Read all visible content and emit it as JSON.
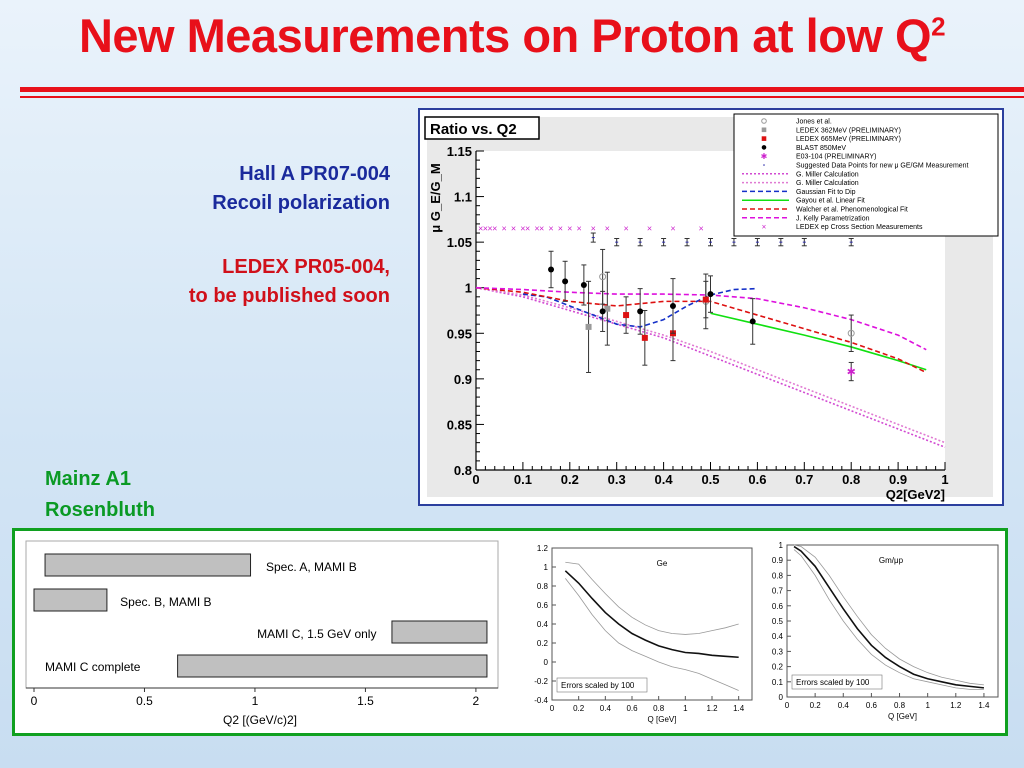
{
  "slide": {
    "title": "New Measurements on Proton at low Q",
    "title_sup": "2",
    "hallA_line1": "Hall A PR07-004",
    "hallA_line2": "Recoil polarization",
    "ledex_line1": "LEDEX PR05-004,",
    "ledex_line2": "to be published soon",
    "mainz_line1": "Mainz A1",
    "mainz_line2": "Rosenbluth"
  },
  "colors": {
    "title": "#e8101a",
    "hallA": "#1a2a9c",
    "mainz": "#0a9a24",
    "panel_border": "#2b3f9e",
    "lower_border": "#10a020"
  },
  "chart_data": [
    {
      "type": "scatter",
      "title": "Ratio vs. Q2",
      "ylabel": "μ G_E/G_M",
      "xlabel": "Q2[GeV2]",
      "xlim": [
        0,
        1
      ],
      "ylim": [
        0.8,
        1.15
      ],
      "xticks": [
        "0",
        "0.1",
        "0.2",
        "0.3",
        "0.4",
        "0.5",
        "0.6",
        "0.7",
        "0.8",
        "0.9",
        "1"
      ],
      "yticks": [
        "0.8",
        "0.85",
        "0.9",
        "0.95",
        "1",
        "1.05",
        "1.1",
        "1.15"
      ],
      "legend_position": "top-right",
      "series": [
        {
          "name": "Jones et al.",
          "marker": "open-circle",
          "color": "#9a9a9a",
          "points": [
            [
              0.27,
              1.012,
              0.03
            ],
            [
              0.49,
              0.985,
              0.03
            ],
            [
              0.8,
              0.95,
              0.02
            ]
          ]
        },
        {
          "name": "LEDEX 362MeV (PRELIMINARY)",
          "marker": "square",
          "color": "#9a9a9a",
          "points": [
            [
              0.24,
              0.957,
              0.05
            ],
            [
              0.28,
              0.977,
              0.04
            ]
          ]
        },
        {
          "name": "LEDEX 665MeV (PRELIMINARY)",
          "marker": "square",
          "color": "#dd1111",
          "points": [
            [
              0.32,
              0.97,
              0.02
            ],
            [
              0.36,
              0.945,
              0.03
            ],
            [
              0.42,
              0.95,
              0.03
            ],
            [
              0.49,
              0.987,
              0.02
            ]
          ]
        },
        {
          "name": "BLAST 850MeV",
          "marker": "filled-circle",
          "color": "#000000",
          "points": [
            [
              0.16,
              1.02,
              0.02
            ],
            [
              0.19,
              1.007,
              0.022
            ],
            [
              0.23,
              1.003,
              0.022
            ],
            [
              0.27,
              0.974,
              0.022
            ],
            [
              0.35,
              0.974,
              0.025
            ],
            [
              0.42,
              0.98,
              0.03
            ],
            [
              0.5,
              0.993,
              0.02
            ],
            [
              0.59,
              0.963,
              0.025
            ]
          ]
        },
        {
          "name": "E03-104 (PRELIMINARY)",
          "marker": "star",
          "color": "#cc22cc",
          "points": [
            [
              0.8,
              0.908,
              0.01
            ]
          ]
        },
        {
          "name": "Suggested Data Points for new μ GE/GM Measurement",
          "marker": "small-bar",
          "color": "#2a2aaa",
          "points": [
            [
              0.25,
              1.055,
              0.005
            ],
            [
              0.3,
              1.05,
              0.004
            ],
            [
              0.35,
              1.05,
              0.004
            ],
            [
              0.4,
              1.05,
              0.004
            ],
            [
              0.45,
              1.05,
              0.004
            ],
            [
              0.5,
              1.05,
              0.004
            ],
            [
              0.55,
              1.05,
              0.004
            ],
            [
              0.6,
              1.05,
              0.004
            ],
            [
              0.65,
              1.05,
              0.004
            ],
            [
              0.7,
              1.05,
              0.004
            ],
            [
              0.8,
              1.05,
              0.004
            ]
          ]
        },
        {
          "name": "LEDEX ep Cross Section Measurements",
          "marker": "x",
          "color": "#cc22cc",
          "points": [
            [
              0.01,
              1.065
            ],
            [
              0.02,
              1.065
            ],
            [
              0.03,
              1.065
            ],
            [
              0.04,
              1.065
            ],
            [
              0.06,
              1.065
            ],
            [
              0.08,
              1.065
            ],
            [
              0.1,
              1.065
            ],
            [
              0.11,
              1.065
            ],
            [
              0.13,
              1.065
            ],
            [
              0.14,
              1.065
            ],
            [
              0.16,
              1.065
            ],
            [
              0.18,
              1.065
            ],
            [
              0.2,
              1.065
            ],
            [
              0.22,
              1.065
            ],
            [
              0.25,
              1.065
            ],
            [
              0.28,
              1.065
            ],
            [
              0.32,
              1.065
            ],
            [
              0.37,
              1.065
            ],
            [
              0.42,
              1.065
            ],
            [
              0.48,
              1.065
            ]
          ]
        }
      ],
      "curves": [
        {
          "name": "G. Miller Calculation",
          "style": "dotted",
          "color": "#d24ad2",
          "x": [
            0,
            0.1,
            0.2,
            0.3,
            0.4,
            0.5,
            0.6,
            0.7,
            0.8,
            0.9,
            1
          ],
          "y": [
            1,
            0.99,
            0.975,
            0.96,
            0.945,
            0.925,
            0.905,
            0.885,
            0.865,
            0.845,
            0.825
          ]
        },
        {
          "name": "G. Miller Calculation",
          "style": "dotted",
          "color": "#e07ad2",
          "x": [
            0,
            0.1,
            0.2,
            0.3,
            0.4,
            0.5,
            0.6,
            0.7,
            0.8,
            0.9,
            1
          ],
          "y": [
            1,
            0.992,
            0.978,
            0.963,
            0.948,
            0.93,
            0.91,
            0.89,
            0.87,
            0.85,
            0.83
          ]
        },
        {
          "name": "Gaussian Fit to Dip",
          "style": "dashed",
          "color": "#1430c8",
          "x": [
            0.1,
            0.15,
            0.2,
            0.25,
            0.3,
            0.35,
            0.4,
            0.45,
            0.5,
            0.55,
            0.6
          ],
          "y": [
            0.993,
            0.99,
            0.98,
            0.97,
            0.96,
            0.957,
            0.965,
            0.98,
            0.992,
            0.998,
            0.999
          ]
        },
        {
          "name": "Gayou et al. Linear Fit",
          "style": "solid",
          "color": "#10e010",
          "x": [
            0.5,
            0.6,
            0.7,
            0.8,
            0.9,
            0.96
          ],
          "y": [
            0.972,
            0.96,
            0.948,
            0.935,
            0.92,
            0.91
          ]
        },
        {
          "name": "Walcher et al. Phenomenological Fit",
          "style": "dashed",
          "color": "#dd1010",
          "x": [
            0,
            0.1,
            0.2,
            0.3,
            0.4,
            0.5,
            0.6,
            0.7,
            0.8,
            0.9,
            0.96
          ],
          "y": [
            1,
            0.995,
            0.985,
            0.98,
            0.985,
            0.985,
            0.97,
            0.955,
            0.94,
            0.922,
            0.907
          ]
        },
        {
          "name": "J. Kelly Parametrization",
          "style": "dashed",
          "color": "#dd10dd",
          "x": [
            0,
            0.1,
            0.2,
            0.3,
            0.4,
            0.5,
            0.6,
            0.7,
            0.8,
            0.9,
            0.96
          ],
          "y": [
            1,
            0.998,
            0.995,
            0.993,
            0.993,
            0.992,
            0.988,
            0.978,
            0.965,
            0.948,
            0.932
          ]
        }
      ]
    },
    {
      "type": "bar",
      "xlabel": "Q2 [(GeV/c)2]",
      "xlim": [
        0,
        2.1
      ],
      "xticks": [
        "0",
        "0.5",
        "1",
        "1.5",
        "2"
      ],
      "bars": [
        {
          "label": "Spec. A, MAMI B",
          "from": 0.05,
          "to": 0.98
        },
        {
          "label": "Spec. B, MAMI B",
          "from": 0.0,
          "to": 0.33
        },
        {
          "label": "MAMI C, 1.5 GeV only",
          "from": 1.62,
          "to": 2.05
        },
        {
          "label": "MAMI C complete",
          "from": 0.65,
          "to": 2.05
        }
      ]
    },
    {
      "type": "line",
      "title": "Ge",
      "xlabel": "Q [GeV]",
      "annotation": "Errors scaled by 100",
      "xlim": [
        0,
        1.5
      ],
      "ylim": [
        -0.4,
        1.2
      ],
      "xticks": [
        "0",
        "0.2",
        "0.4",
        "0.6",
        "0.8",
        "1",
        "1.2",
        "1.4"
      ],
      "yticks": [
        "-0.4",
        "-0.2",
        "0",
        "0.2",
        "0.4",
        "0.6",
        "0.8",
        "1",
        "1.2"
      ],
      "x": [
        0.1,
        0.2,
        0.3,
        0.4,
        0.5,
        0.6,
        0.7,
        0.8,
        0.9,
        1.0,
        1.1,
        1.2,
        1.3,
        1.4
      ],
      "central": [
        0.96,
        0.83,
        0.67,
        0.52,
        0.4,
        0.3,
        0.23,
        0.17,
        0.13,
        0.1,
        0.09,
        0.07,
        0.06,
        0.05
      ],
      "upper": [
        1.05,
        1.03,
        0.87,
        0.72,
        0.58,
        0.47,
        0.39,
        0.33,
        0.3,
        0.29,
        0.3,
        0.33,
        0.36,
        0.4
      ],
      "lower": [
        0.88,
        0.7,
        0.5,
        0.33,
        0.2,
        0.12,
        0.06,
        0.0,
        -0.05,
        -0.08,
        -0.12,
        -0.18,
        -0.24,
        -0.3
      ]
    },
    {
      "type": "line",
      "title": "Gm/μp",
      "xlabel": "Q [GeV]",
      "annotation": "Errors scaled by 100",
      "xlim": [
        0,
        1.5
      ],
      "ylim": [
        0,
        1
      ],
      "xticks": [
        "0",
        "0.2",
        "0.4",
        "0.6",
        "0.8",
        "1",
        "1.2",
        "1.4"
      ],
      "yticks": [
        "0",
        "0.1",
        "0.2",
        "0.3",
        "0.4",
        "0.5",
        "0.6",
        "0.7",
        "0.8",
        "0.9",
        "1"
      ],
      "x": [
        0.05,
        0.1,
        0.2,
        0.3,
        0.4,
        0.5,
        0.6,
        0.7,
        0.8,
        0.9,
        1.0,
        1.1,
        1.2,
        1.3,
        1.4
      ],
      "central": [
        0.99,
        0.96,
        0.86,
        0.72,
        0.58,
        0.45,
        0.34,
        0.26,
        0.2,
        0.15,
        0.12,
        0.1,
        0.08,
        0.07,
        0.06
      ],
      "upper": [
        1.0,
        0.99,
        0.92,
        0.8,
        0.66,
        0.53,
        0.41,
        0.32,
        0.25,
        0.2,
        0.16,
        0.13,
        0.11,
        0.09,
        0.08
      ],
      "lower": [
        0.97,
        0.93,
        0.8,
        0.64,
        0.5,
        0.38,
        0.28,
        0.21,
        0.16,
        0.12,
        0.1,
        0.08,
        0.06,
        0.05,
        0.05
      ]
    }
  ]
}
